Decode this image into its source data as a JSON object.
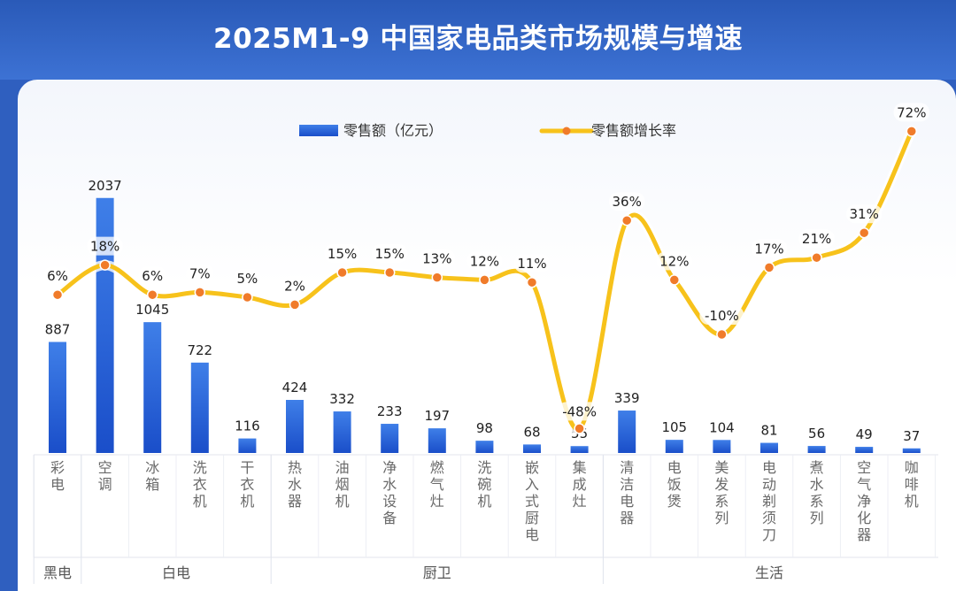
{
  "title": "2025M1-9 中国家电品类市场规模与增速",
  "legend": {
    "bar": "零售额（亿元）",
    "line": "零售额增长率"
  },
  "colors": {
    "bar_top": "#3f7fe8",
    "bar_bottom": "#1a4ec9",
    "line": "#f7c21b",
    "dot": "#f07b2a",
    "header": "#2f5fbf"
  },
  "chart_data": {
    "type": "bar",
    "categories": [
      "彩电",
      "空调",
      "冰箱",
      "洗衣机",
      "干衣机",
      "热水器",
      "油烟机",
      "净水设备",
      "燃气灶",
      "洗碗机",
      "嵌入式厨电",
      "集成灶",
      "清洁电器",
      "电饭煲",
      "美发系列",
      "电动剃须刀",
      "煮水系列",
      "空气净化器",
      "咖啡机"
    ],
    "series": [
      {
        "name": "零售额（亿元）",
        "type": "bar",
        "values": [
          887,
          2037,
          1045,
          722,
          116,
          424,
          332,
          233,
          197,
          98,
          68,
          55,
          339,
          105,
          104,
          81,
          56,
          49,
          37
        ]
      },
      {
        "name": "零售额增长率",
        "type": "line",
        "values": [
          6,
          18,
          6,
          7,
          5,
          2,
          15,
          15,
          13,
          12,
          11,
          -48,
          36,
          12,
          -10,
          17,
          21,
          31,
          72
        ]
      }
    ],
    "value_labels": [
      "887",
      "2037",
      "1045",
      "722",
      "116",
      "424",
      "332",
      "233",
      "197",
      "98",
      "68",
      "55",
      "339",
      "105",
      "104",
      "81",
      "56",
      "49",
      "37"
    ],
    "growth_labels": [
      "6%",
      "18%",
      "6%",
      "7%",
      "5%",
      "2%",
      "15%",
      "15%",
      "13%",
      "12%",
      "11%",
      "-48%",
      "36%",
      "12%",
      "-10%",
      "17%",
      "21%",
      "31%",
      "72%"
    ],
    "groups": [
      {
        "name": "黑电",
        "count": 1
      },
      {
        "name": "白电",
        "count": 4
      },
      {
        "name": "厨卫",
        "count": 7
      },
      {
        "name": "生活",
        "count": 7
      }
    ],
    "legend_position": "top-center"
  }
}
